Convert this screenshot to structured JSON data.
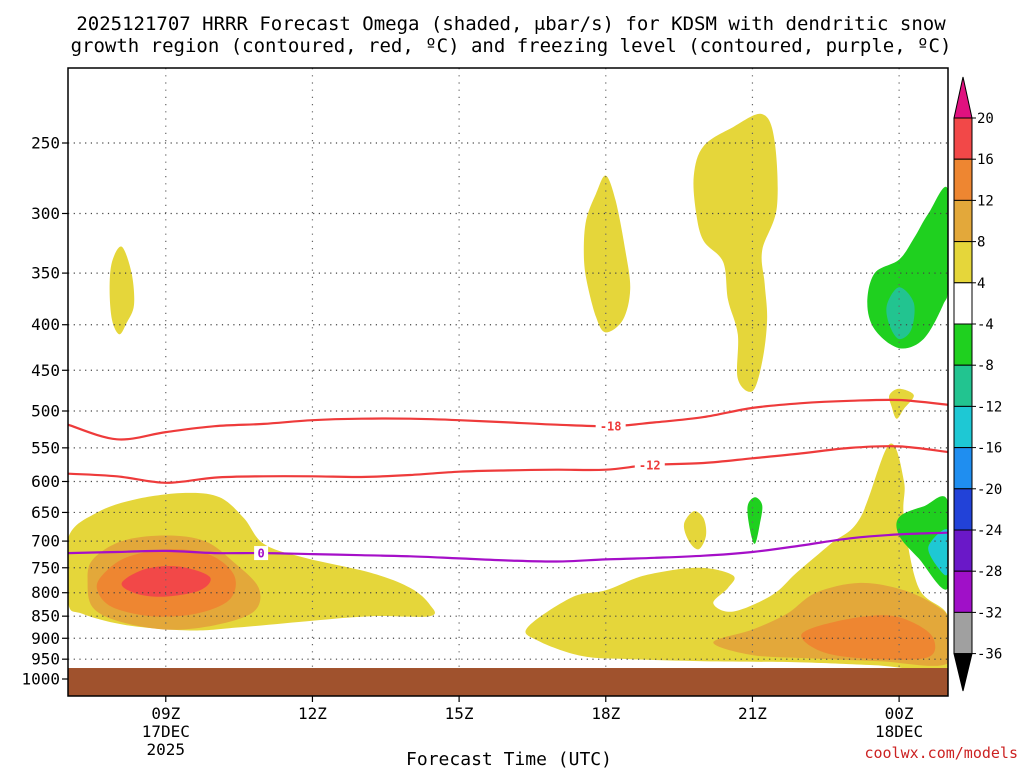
{
  "chart_data": {
    "type": "time-height cross section (filled + line contours)",
    "title_line1": "2025121707 HRRR Forecast Omega (shaded, μbar/s) for KDSM with dendritic snow",
    "title_line2": "growth region (contoured, red, ºC) and freezing level (contoured, purple, ºC)",
    "xlabel": "Forecast Time (UTC)",
    "ylabel": "Pressure (hPa)",
    "credit": "coolwx.com/models",
    "x_range_hours": [
      7,
      25
    ],
    "y_range_hpa": [
      200,
      1000
    ],
    "x_ticks": [
      {
        "hour": 9,
        "lines": [
          "09Z",
          "17DEC",
          "2025"
        ]
      },
      {
        "hour": 12,
        "lines": [
          "12Z"
        ]
      },
      {
        "hour": 15,
        "lines": [
          "15Z"
        ]
      },
      {
        "hour": 18,
        "lines": [
          "18Z"
        ]
      },
      {
        "hour": 21,
        "lines": [
          "21Z"
        ]
      },
      {
        "hour": 24,
        "lines": [
          "00Z",
          "18DEC"
        ]
      }
    ],
    "y_ticks": [
      250,
      300,
      350,
      400,
      450,
      500,
      550,
      600,
      650,
      700,
      750,
      800,
      850,
      900,
      950,
      1000
    ],
    "surface": {
      "top_hpa": 972,
      "color": "#a0522d"
    },
    "colorbar": {
      "labels": [
        "20",
        "16",
        "12",
        "8",
        "4",
        "-4",
        "-8",
        "-12",
        "-16",
        "-20",
        "-24",
        "-28",
        "-32",
        "-36"
      ],
      "levels": [
        {
          "range": "> 20",
          "color": "#e0117f"
        },
        {
          "range": "16 to 20",
          "color": "#f24848"
        },
        {
          "range": "12 to 16",
          "color": "#ee8631"
        },
        {
          "range": "8 to 12",
          "color": "#e3a83a"
        },
        {
          "range": "4 to 8",
          "color": "#e5d63a"
        },
        {
          "range": "-4 to 4",
          "color": "#ffffff"
        },
        {
          "range": "-8 to -4",
          "color": "#1fd01f"
        },
        {
          "range": "-12 to -8",
          "color": "#22c490"
        },
        {
          "range": "-16 to -12",
          "color": "#1ec8d4"
        },
        {
          "range": "-20 to -16",
          "color": "#1f8ef0"
        },
        {
          "range": "-24 to -20",
          "color": "#2242d8"
        },
        {
          "range": "-28 to -24",
          "color": "#6a18c8"
        },
        {
          "range": "-32 to -28",
          "color": "#a010c8"
        },
        {
          "range": "-36 to -32",
          "color": "#a0a0a0"
        },
        {
          "range": "< -36",
          "color": "#000000"
        }
      ]
    },
    "omega_regions": [
      {
        "name": "early-low-level-ascent",
        "level_range": "4 to 8",
        "color": "#e5d63a",
        "outline": [
          [
            7.0,
            695
          ],
          [
            7.6,
            650
          ],
          [
            8.4,
            628
          ],
          [
            9.4,
            618
          ],
          [
            10.1,
            625
          ],
          [
            10.6,
            660
          ],
          [
            11.0,
            705
          ],
          [
            11.8,
            730
          ],
          [
            13.2,
            760
          ],
          [
            14.0,
            790
          ],
          [
            14.4,
            825
          ],
          [
            14.4,
            850
          ],
          [
            13.2,
            850
          ],
          [
            12.0,
            860
          ],
          [
            10.5,
            875
          ],
          [
            9.5,
            882
          ],
          [
            8.2,
            870
          ],
          [
            7.3,
            845
          ],
          [
            7.0,
            820
          ]
        ]
      },
      {
        "name": "early-low-level-ascent-core",
        "level_range": "8 to 12",
        "color": "#e3a83a",
        "outline": [
          [
            7.5,
            735
          ],
          [
            8.1,
            700
          ],
          [
            9.0,
            690
          ],
          [
            9.8,
            700
          ],
          [
            10.4,
            740
          ],
          [
            10.9,
            790
          ],
          [
            10.8,
            840
          ],
          [
            10.0,
            870
          ],
          [
            9.0,
            880
          ],
          [
            8.0,
            860
          ],
          [
            7.5,
            830
          ],
          [
            7.4,
            780
          ]
        ]
      },
      {
        "name": "early-low-level-ascent-12",
        "level_range": "12 to 16",
        "color": "#ee8631",
        "outline": [
          [
            7.7,
            765
          ],
          [
            8.2,
            730
          ],
          [
            9.1,
            715
          ],
          [
            9.9,
            725
          ],
          [
            10.4,
            765
          ],
          [
            10.3,
            815
          ],
          [
            9.6,
            845
          ],
          [
            8.7,
            850
          ],
          [
            7.9,
            830
          ],
          [
            7.6,
            795
          ]
        ]
      },
      {
        "name": "early-low-level-ascent-max",
        "level_range": "16 to 20",
        "color": "#f24848",
        "outline": [
          [
            8.1,
            780
          ],
          [
            8.6,
            752
          ],
          [
            9.3,
            748
          ],
          [
            9.9,
            768
          ],
          [
            9.7,
            795
          ],
          [
            9.0,
            808
          ],
          [
            8.4,
            802
          ]
        ]
      },
      {
        "name": "small-aloft-cell-08z",
        "level_range": "4 to 8",
        "color": "#e5d63a",
        "outline": [
          [
            7.9,
            340
          ],
          [
            8.1,
            327
          ],
          [
            8.3,
            350
          ],
          [
            8.35,
            380
          ],
          [
            8.2,
            398
          ],
          [
            8.05,
            410
          ],
          [
            7.9,
            395
          ],
          [
            7.85,
            365
          ]
        ]
      },
      {
        "name": "aloft-cell-18z",
        "level_range": "4 to 8",
        "color": "#e5d63a",
        "outline": [
          [
            17.6,
            305
          ],
          [
            17.8,
            285
          ],
          [
            18.0,
            272
          ],
          [
            18.2,
            290
          ],
          [
            18.4,
            330
          ],
          [
            18.5,
            365
          ],
          [
            18.35,
            395
          ],
          [
            18.0,
            408
          ],
          [
            17.8,
            392
          ],
          [
            17.6,
            355
          ],
          [
            17.55,
            330
          ]
        ]
      },
      {
        "name": "aloft-cell-21z",
        "level_range": "4 to 8",
        "color": "#e5d63a",
        "outline": [
          [
            19.8,
            272
          ],
          [
            20.0,
            252
          ],
          [
            20.6,
            240
          ],
          [
            21.2,
            232
          ],
          [
            21.45,
            248
          ],
          [
            21.5,
            295
          ],
          [
            21.2,
            330
          ],
          [
            21.25,
            360
          ],
          [
            21.3,
            395
          ],
          [
            21.2,
            440
          ],
          [
            21.0,
            475
          ],
          [
            20.7,
            460
          ],
          [
            20.7,
            410
          ],
          [
            20.5,
            375
          ],
          [
            20.4,
            340
          ],
          [
            20.0,
            322
          ],
          [
            19.85,
            300
          ]
        ]
      },
      {
        "name": "afternoon-low-level-ascent",
        "level_range": "4 to 8",
        "color": "#e5d63a",
        "outline": [
          [
            17.3,
            810
          ],
          [
            18.0,
            795
          ],
          [
            18.8,
            765
          ],
          [
            19.9,
            750
          ],
          [
            20.6,
            765
          ],
          [
            20.5,
            790
          ],
          [
            20.2,
            822
          ],
          [
            20.6,
            840
          ],
          [
            21.4,
            805
          ],
          [
            21.9,
            760
          ],
          [
            22.6,
            705
          ],
          [
            23.2,
            660
          ],
          [
            23.8,
            545
          ],
          [
            24.1,
            600
          ],
          [
            24.1,
            660
          ],
          [
            24.4,
            790
          ],
          [
            25.0,
            850
          ],
          [
            25.0,
            970
          ],
          [
            23.5,
            965
          ],
          [
            22.0,
            958
          ],
          [
            20.0,
            955
          ],
          [
            18.5,
            950
          ],
          [
            17.5,
            942
          ],
          [
            16.6,
            905
          ],
          [
            16.4,
            875
          ]
        ]
      },
      {
        "name": "evening-low-level-ascent-core",
        "level_range": "8 to 12",
        "color": "#e3a83a",
        "outline": [
          [
            20.2,
            910
          ],
          [
            21.0,
            880
          ],
          [
            21.7,
            845
          ],
          [
            22.3,
            800
          ],
          [
            23.2,
            780
          ],
          [
            24.1,
            795
          ],
          [
            24.8,
            830
          ],
          [
            25.0,
            860
          ],
          [
            25.0,
            960
          ],
          [
            23.6,
            955
          ],
          [
            22.2,
            948
          ],
          [
            21.0,
            940
          ]
        ]
      },
      {
        "name": "evening-low-level-ascent-12",
        "level_range": "12 to 16",
        "color": "#ee8631",
        "outline": [
          [
            22.0,
            892
          ],
          [
            22.7,
            862
          ],
          [
            23.7,
            848
          ],
          [
            24.3,
            865
          ],
          [
            24.7,
            900
          ],
          [
            24.6,
            945
          ],
          [
            23.6,
            950
          ],
          [
            22.5,
            935
          ]
        ]
      },
      {
        "name": "small-cell-20z",
        "level_range": "4 to 8",
        "color": "#e5d63a",
        "outline": [
          [
            19.6,
            670
          ],
          [
            19.8,
            648
          ],
          [
            20.0,
            660
          ],
          [
            20.05,
            690
          ],
          [
            19.9,
            715
          ],
          [
            19.7,
            700
          ]
        ]
      },
      {
        "name": "small-cell-00z",
        "level_range": "4 to 8",
        "color": "#e5d63a",
        "outline": [
          [
            23.8,
            480
          ],
          [
            24.0,
            472
          ],
          [
            24.3,
            480
          ],
          [
            24.1,
            497
          ],
          [
            23.95,
            510
          ],
          [
            23.85,
            495
          ]
        ]
      },
      {
        "name": "descent-aloft-late",
        "level_range": "-8 to -4",
        "color": "#1fd01f",
        "outline": [
          [
            25.0,
            282
          ],
          [
            24.6,
            300
          ],
          [
            24.3,
            320
          ],
          [
            24.0,
            338
          ],
          [
            23.5,
            350
          ],
          [
            23.35,
            378
          ],
          [
            23.5,
            405
          ],
          [
            24.0,
            425
          ],
          [
            24.5,
            415
          ],
          [
            24.9,
            380
          ],
          [
            25.0,
            360
          ]
        ]
      },
      {
        "name": "descent-aloft-late-core",
        "level_range": "-12 to -8",
        "color": "#22c490",
        "outline": [
          [
            23.75,
            380
          ],
          [
            24.0,
            363
          ],
          [
            24.3,
            378
          ],
          [
            24.25,
            405
          ],
          [
            24.0,
            415
          ],
          [
            23.8,
            400
          ]
        ]
      },
      {
        "name": "descent-21z-small",
        "level_range": "-8 to -4",
        "color": "#1fd01f",
        "outline": [
          [
            20.9,
            640
          ],
          [
            21.05,
            625
          ],
          [
            21.2,
            638
          ],
          [
            21.15,
            670
          ],
          [
            21.05,
            705
          ],
          [
            20.95,
            680
          ]
        ]
      },
      {
        "name": "descent-low-level-late",
        "level_range": "-8 to -4",
        "color": "#1fd01f",
        "outline": [
          [
            25.0,
            632
          ],
          [
            24.5,
            640
          ],
          [
            24.0,
            658
          ],
          [
            24.0,
            690
          ],
          [
            24.4,
            732
          ],
          [
            25.0,
            790
          ]
        ]
      },
      {
        "name": "descent-low-level-late-core",
        "level_range": "-12 to -8",
        "color": "#1ec8d4",
        "outline": [
          [
            25.0,
            680
          ],
          [
            24.6,
            710
          ],
          [
            24.8,
            750
          ],
          [
            25.0,
            760
          ]
        ]
      }
    ],
    "line_contours": [
      {
        "name": "isotherm-minus-18",
        "label": "-18",
        "color": "#ee3b3b",
        "label_at_hour": 18.1,
        "points": [
          [
            7.0,
            518
          ],
          [
            8.0,
            538
          ],
          [
            9.0,
            528
          ],
          [
            10.0,
            520
          ],
          [
            11.0,
            517
          ],
          [
            12.0,
            512
          ],
          [
            13.0,
            510
          ],
          [
            14.0,
            510
          ],
          [
            15.0,
            512
          ],
          [
            16.0,
            515
          ],
          [
            17.0,
            518
          ],
          [
            18.1,
            520
          ],
          [
            19.0,
            515
          ],
          [
            20.0,
            508
          ],
          [
            21.0,
            496
          ],
          [
            22.0,
            490
          ],
          [
            23.0,
            487
          ],
          [
            24.0,
            486
          ],
          [
            25.0,
            492
          ]
        ]
      },
      {
        "name": "isotherm-minus-12",
        "label": "-12",
        "color": "#ee3b3b",
        "label_at_hour": 18.9,
        "points": [
          [
            7.0,
            588
          ],
          [
            8.0,
            592
          ],
          [
            9.0,
            602
          ],
          [
            10.0,
            594
          ],
          [
            11.0,
            592
          ],
          [
            12.0,
            592
          ],
          [
            13.0,
            593
          ],
          [
            14.0,
            590
          ],
          [
            15.0,
            585
          ],
          [
            16.0,
            583
          ],
          [
            17.0,
            582
          ],
          [
            18.0,
            582
          ],
          [
            18.9,
            575
          ],
          [
            20.0,
            572
          ],
          [
            21.0,
            565
          ],
          [
            22.0,
            558
          ],
          [
            23.0,
            550
          ],
          [
            24.0,
            548
          ],
          [
            25.0,
            556
          ]
        ]
      },
      {
        "name": "freezing-level-0",
        "label": "0",
        "color": "#a50fc8",
        "label_at_hour": 10.95,
        "points": [
          [
            7.0,
            722
          ],
          [
            8.0,
            720
          ],
          [
            9.0,
            718
          ],
          [
            10.0,
            722
          ],
          [
            11.0,
            722
          ],
          [
            12.0,
            724
          ],
          [
            13.0,
            726
          ],
          [
            14.0,
            728
          ],
          [
            15.0,
            732
          ],
          [
            16.0,
            736
          ],
          [
            17.0,
            738
          ],
          [
            18.0,
            734
          ],
          [
            19.0,
            731
          ],
          [
            20.0,
            727
          ],
          [
            21.0,
            720
          ],
          [
            22.0,
            708
          ],
          [
            23.0,
            695
          ],
          [
            24.0,
            688
          ],
          [
            25.0,
            685
          ]
        ]
      }
    ]
  }
}
